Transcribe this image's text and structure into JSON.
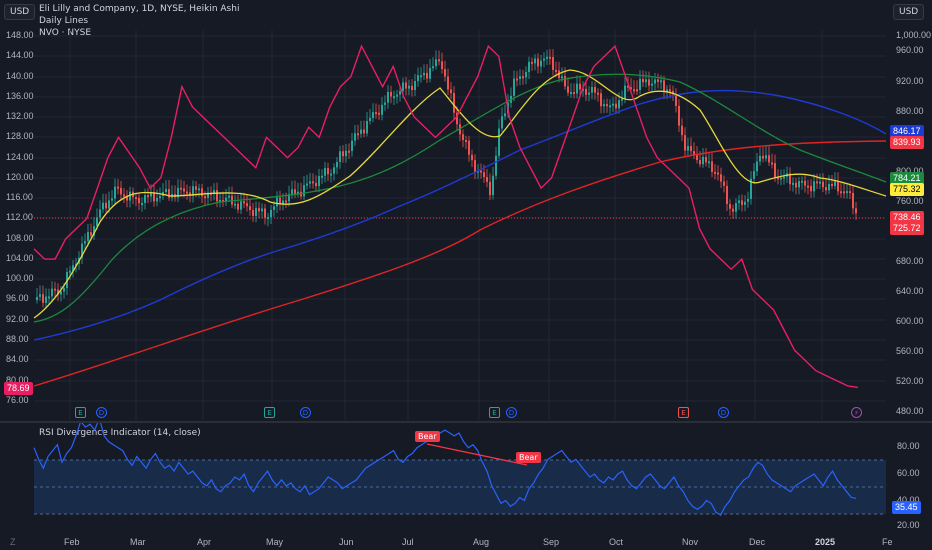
{
  "header": {
    "currency_left": "USD",
    "currency_right": "USD",
    "legend_line1": "Eli Lilly and Company, 1D, NYSE, Heikin Ashi",
    "legend_line2": "Daily Lines",
    "legend_line3": "NVO · NYSE"
  },
  "left_axis": [
    "148.00",
    "144.00",
    "140.00",
    "136.00",
    "132.00",
    "128.00",
    "124.00",
    "120.00",
    "116.00",
    "112.00",
    "108.00",
    "104.00",
    "100.00",
    "96.00",
    "92.00",
    "88.00",
    "84.00",
    "80.00",
    "76.00"
  ],
  "right_axis": [
    "1,000.00",
    "960.00",
    "920.00",
    "880.00",
    "840.00",
    "800.00",
    "760.00",
    "720.00",
    "680.00",
    "640.00",
    "600.00",
    "560.00",
    "520.00",
    "480.00"
  ],
  "price_tags": [
    {
      "value": "846.17",
      "color": "#1e3bd6",
      "text": "#ffffff"
    },
    {
      "value": "839.93",
      "color": "#f23645",
      "text": "#ffffff"
    },
    {
      "value": "784.21",
      "color": "#1b8a3c",
      "text": "#ffffff"
    },
    {
      "value": "775.32",
      "color": "#ffeb3b",
      "text": "#000000"
    },
    {
      "value": "738.46",
      "color": "#f23645",
      "text": "#ffffff"
    },
    {
      "value": "725.72",
      "color": "#f23645",
      "text": "#ffffff"
    }
  ],
  "left_tag": {
    "value": "78.69",
    "color": "#e91e63"
  },
  "events": [
    {
      "type": "E",
      "kind": "earnings"
    },
    {
      "type": "D",
      "kind": "dividend"
    },
    {
      "type": "E",
      "kind": "earnings"
    },
    {
      "type": "D",
      "kind": "dividend"
    },
    {
      "type": "E",
      "kind": "earnings"
    },
    {
      "type": "D",
      "kind": "dividend"
    },
    {
      "type": "E",
      "kind": "earnings-red"
    },
    {
      "type": "D",
      "kind": "dividend"
    },
    {
      "type": "⚡",
      "kind": "bolt"
    }
  ],
  "rsi": {
    "title": "RSI Divergence Indicator (14, close)",
    "axis": [
      "80.00",
      "60.00",
      "40.00",
      "20.00"
    ],
    "value_tag": "35.45",
    "bear_labels": [
      "Bear",
      "Bear"
    ],
    "values": [
      70,
      62,
      56,
      64,
      68,
      72,
      60,
      66,
      70,
      78,
      88,
      84,
      86,
      82,
      90,
      78,
      74,
      72,
      70,
      68,
      62,
      58,
      64,
      60,
      56,
      62,
      66,
      60,
      56,
      58,
      54,
      60,
      56,
      52,
      54,
      50,
      46,
      44,
      48,
      42,
      40,
      44,
      46,
      50,
      48,
      52,
      44,
      40,
      46,
      50,
      54,
      48,
      44,
      48,
      44,
      46,
      42,
      40,
      44,
      38,
      40,
      42,
      46,
      50,
      48,
      46,
      42,
      44,
      46,
      48,
      52,
      56,
      58,
      60,
      62,
      64,
      66,
      68,
      62,
      60,
      64,
      66,
      70,
      72,
      74,
      76,
      78,
      80,
      82,
      80,
      78,
      80,
      74,
      70,
      72,
      68,
      60,
      54,
      44,
      38,
      32,
      34,
      30,
      32,
      36,
      34,
      42,
      46,
      52,
      56,
      62,
      64,
      66,
      68,
      64,
      60,
      62,
      58,
      54,
      50,
      52,
      48,
      46,
      50,
      48,
      52,
      54,
      48,
      44,
      42,
      46,
      50,
      52,
      48,
      44,
      42,
      46,
      50,
      44,
      40,
      34,
      30,
      28,
      30,
      34,
      32,
      26,
      24,
      30,
      34,
      40,
      44,
      48,
      50,
      56,
      60,
      58,
      52,
      48,
      46,
      44,
      42,
      40,
      44,
      46,
      48,
      50,
      52,
      48,
      44,
      50,
      54,
      48,
      44,
      40,
      36,
      35.45
    ]
  },
  "time_axis": [
    "Feb",
    "Mar",
    "Apr",
    "May",
    "Jun",
    "Jul",
    "Aug",
    "Sep",
    "Oct",
    "Nov",
    "Dec",
    "2025",
    "Fe"
  ],
  "chart_data": {
    "type": "line",
    "title": "Eli Lilly and Company, 1D, NYSE, Heikin Ashi",
    "series": [
      {
        "name": "NVO · NYSE",
        "axis": "left",
        "color": "#e91e63",
        "values": [
          106,
          104,
          104,
          108,
          110,
          112,
          118,
          124,
          128,
          125,
          122,
          118,
          120,
          128,
          138,
          134,
          132,
          130,
          128,
          126,
          124,
          122,
          128,
          126,
          124,
          126,
          130,
          128,
          134,
          138,
          140,
          146,
          142,
          138,
          142,
          136,
          132,
          130,
          128,
          130,
          132,
          136,
          140,
          146,
          144,
          132,
          126,
          122,
          118,
          120,
          126,
          132,
          138,
          142,
          144,
          146,
          140,
          134,
          128,
          124,
          122,
          120,
          118,
          110,
          106,
          104,
          102,
          104,
          98,
          96,
          94,
          90,
          86,
          84,
          82,
          81,
          80,
          79,
          78.69
        ]
      }
    ],
    "ylim_left": [
      76,
      148
    ],
    "ylim_right": [
      480,
      1000
    ],
    "x_labels": [
      "Feb",
      "Mar",
      "Apr",
      "May",
      "Jun",
      "Jul",
      "Aug",
      "Sep",
      "Oct",
      "Nov",
      "Dec",
      "2025",
      "Fe"
    ]
  }
}
